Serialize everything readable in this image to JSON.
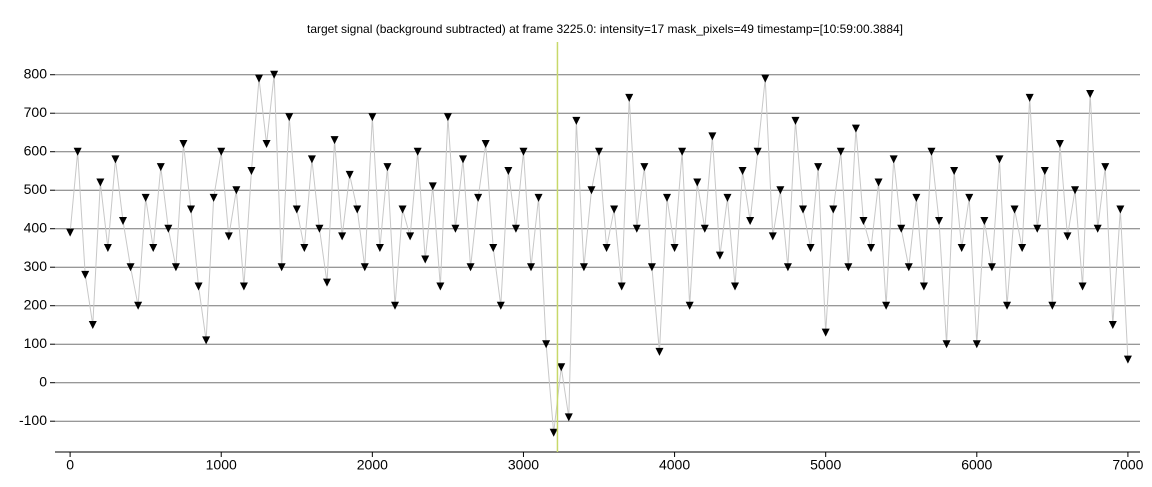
{
  "chart_data": {
    "type": "line",
    "title": "target signal (background subtracted) at frame 3225.0: intensity=17 mask_pixels=49 timestamp=[10:59:00.3884]",
    "x": [
      0,
      50,
      100,
      150,
      200,
      250,
      300,
      350,
      400,
      450,
      500,
      550,
      600,
      650,
      700,
      750,
      800,
      850,
      900,
      950,
      1000,
      1050,
      1100,
      1150,
      1200,
      1250,
      1300,
      1350,
      1400,
      1450,
      1500,
      1550,
      1600,
      1650,
      1700,
      1750,
      1800,
      1850,
      1900,
      1950,
      2000,
      2050,
      2100,
      2150,
      2200,
      2250,
      2300,
      2350,
      2400,
      2450,
      2500,
      2550,
      2600,
      2650,
      2700,
      2750,
      2800,
      2850,
      2900,
      2950,
      3000,
      3050,
      3100,
      3150,
      3200,
      3250,
      3300,
      3350,
      3400,
      3450,
      3500,
      3550,
      3600,
      3650,
      3700,
      3750,
      3800,
      3850,
      3900,
      3950,
      4000,
      4050,
      4100,
      4150,
      4200,
      4250,
      4300,
      4350,
      4400,
      4450,
      4500,
      4550,
      4600,
      4650,
      4700,
      4750,
      4800,
      4850,
      4900,
      4950,
      5000,
      5050,
      5100,
      5150,
      5200,
      5250,
      5300,
      5350,
      5400,
      5450,
      5500,
      5550,
      5600,
      5650,
      5700,
      5750,
      5800,
      5850,
      5900,
      5950,
      6000,
      6050,
      6100,
      6150,
      6200,
      6250,
      6300,
      6350,
      6400,
      6450,
      6500,
      6550,
      6600,
      6650,
      6700,
      6750,
      6800,
      6850,
      6900,
      6950,
      7000
    ],
    "series": [
      {
        "name": "target signal",
        "color": "#000000",
        "line_color": "#c8c8c8",
        "values": [
          390,
          600,
          280,
          150,
          520,
          350,
          580,
          420,
          300,
          200,
          480,
          350,
          560,
          400,
          300,
          620,
          450,
          250,
          110,
          480,
          600,
          380,
          500,
          250,
          550,
          790,
          620,
          800,
          300,
          690,
          450,
          350,
          580,
          400,
          260,
          630,
          380,
          540,
          450,
          300,
          690,
          350,
          560,
          200,
          450,
          380,
          600,
          320,
          510,
          250,
          690,
          400,
          580,
          300,
          480,
          620,
          350,
          200,
          550,
          400,
          600,
          300,
          480,
          100,
          -130,
          40,
          -90,
          680,
          300,
          500,
          600,
          350,
          450,
          250,
          740,
          400,
          560,
          300,
          80,
          480,
          350,
          600,
          200,
          520,
          400,
          640,
          330,
          480,
          250,
          550,
          420,
          600,
          790,
          380,
          500,
          300,
          680,
          450,
          350,
          560,
          130,
          450,
          600,
          300,
          660,
          420,
          350,
          520,
          200,
          580,
          400,
          300,
          480,
          250,
          600,
          420,
          100,
          550,
          350,
          480,
          100,
          420,
          300,
          580,
          200,
          450,
          350,
          740,
          400,
          550,
          200,
          620,
          380,
          500,
          250,
          750,
          400,
          560,
          150,
          450,
          60
        ]
      }
    ],
    "xlim": [
      -100,
      7080
    ],
    "ylim": [
      -180,
      885
    ],
    "xticks": [
      0,
      1000,
      2000,
      3000,
      4000,
      5000,
      6000,
      7000
    ],
    "yticks": [
      -100,
      0,
      100,
      200,
      300,
      400,
      500,
      600,
      700,
      800
    ],
    "grid": true,
    "marker": "triangle-down",
    "cursor_x": 3225,
    "cursor_color": "#c8d86a"
  }
}
